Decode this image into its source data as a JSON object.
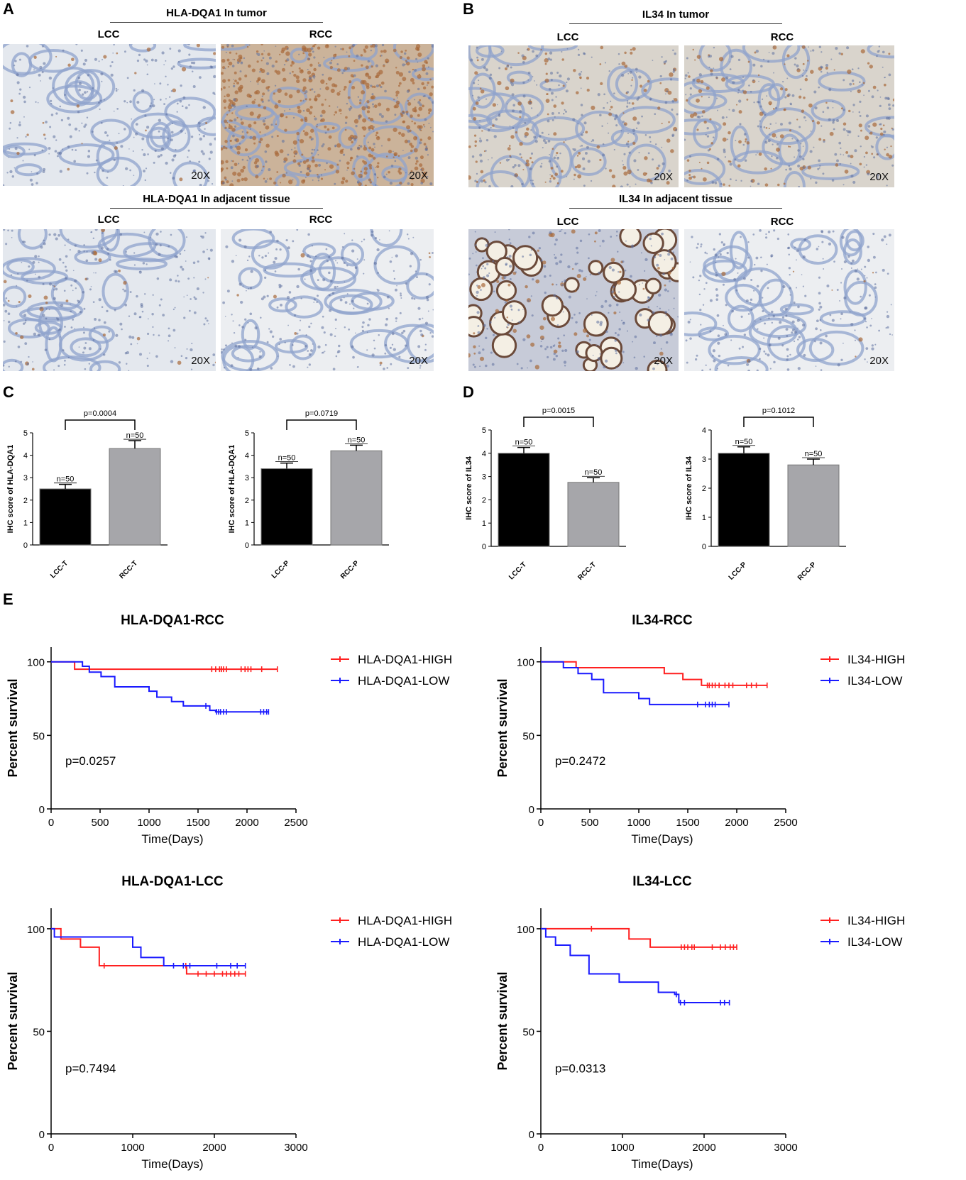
{
  "panels": {
    "A": {
      "label": "A",
      "tumor_title": "HLA-DQA1 In tumor",
      "adjacent_title": "HLA-DQA1 In adjacent tissue",
      "col_left": "LCC",
      "col_right": "RCC",
      "mag": "20X"
    },
    "B": {
      "label": "B",
      "tumor_title": "IL34  In tumor",
      "adjacent_title": "IL34 In adjacent tissue",
      "col_left": "LCC",
      "col_right": "RCC",
      "mag": "20X"
    },
    "C": {
      "label": "C"
    },
    "D": {
      "label": "D"
    },
    "E": {
      "label": "E"
    }
  },
  "colors": {
    "black_bar": "#000000",
    "gray_bar": "#a6a6aa",
    "high": "#ff2020",
    "low": "#1a1aff",
    "he_blue": "#8fa3cc",
    "dab_brown": "#a86a3a"
  },
  "chart_data": [
    {
      "id": "C-left",
      "type": "bar",
      "categories": [
        "LCC-T",
        "RCC-T"
      ],
      "values": [
        2.5,
        4.3
      ],
      "errors": [
        0.2,
        0.35
      ],
      "ns": [
        "n=50",
        "n=50"
      ],
      "ylabel": "IHC score of HLA-DQA1",
      "ylim": [
        0,
        5
      ],
      "yticks": [
        "0",
        "1",
        "2",
        "3",
        "4",
        "5"
      ],
      "pvalue": "p=0.0004"
    },
    {
      "id": "C-right",
      "type": "bar",
      "categories": [
        "LCC-P",
        "RCC-P"
      ],
      "values": [
        3.4,
        4.2
      ],
      "errors": [
        0.25,
        0.25
      ],
      "ns": [
        "n=50",
        "n=50"
      ],
      "ylabel": "IHC score of HLA-DQA1",
      "ylim": [
        0,
        5
      ],
      "yticks": [
        "0",
        "1",
        "2",
        "3",
        "4",
        "5"
      ],
      "pvalue": "p=0.0719"
    },
    {
      "id": "D-left",
      "type": "bar",
      "categories": [
        "LCC-T",
        "RCC-T"
      ],
      "values": [
        4.0,
        2.75
      ],
      "errors": [
        0.25,
        0.2
      ],
      "ns": [
        "n=50",
        "n=50"
      ],
      "ylabel": "IHC score of IL34",
      "ylim": [
        0,
        5
      ],
      "yticks": [
        "0",
        "1",
        "2",
        "3",
        "4",
        "5"
      ],
      "pvalue": "p=0.0015"
    },
    {
      "id": "D-right",
      "type": "bar",
      "categories": [
        "LCC-P",
        "RCC-P"
      ],
      "values": [
        3.2,
        2.8
      ],
      "errors": [
        0.22,
        0.2
      ],
      "ns": [
        "n=50",
        "n=50"
      ],
      "ylabel": "IHC score of IL34",
      "ylim": [
        0,
        4
      ],
      "yticks": [
        "0",
        "1",
        "2",
        "3",
        "4"
      ],
      "pvalue": "p=0.1012"
    },
    {
      "id": "E-hla-rcc",
      "type": "line",
      "title": "HLA-DQA1-RCC",
      "xlabel": "Time(Days)",
      "ylabel": "Percent survival",
      "xlim": [
        0,
        2500
      ],
      "ylim": [
        0,
        100
      ],
      "xticks": [
        "0",
        "500",
        "1000",
        "1500",
        "2000",
        "2500"
      ],
      "yticks": [
        "0",
        "50",
        "100"
      ],
      "pvalue": "p=0.0257",
      "series": [
        {
          "name": "HLA-DQA1-HIGH",
          "color": "#ff2020",
          "steps": [
            [
              0,
              100
            ],
            [
              240,
              95
            ],
            [
              2310,
              95
            ]
          ],
          "censors": [
            1640,
            1680,
            1720,
            1740,
            1760,
            1790,
            1940,
            1980,
            2010,
            2040,
            2150,
            2310
          ]
        },
        {
          "name": "HLA-DQA1-LOW",
          "color": "#1a1aff",
          "steps": [
            [
              0,
              100
            ],
            [
              320,
              97
            ],
            [
              390,
              93
            ],
            [
              510,
              90
            ],
            [
              650,
              83
            ],
            [
              1000,
              80
            ],
            [
              1080,
              76
            ],
            [
              1230,
              73
            ],
            [
              1350,
              70
            ],
            [
              1620,
              67
            ],
            [
              1680,
              66
            ],
            [
              2220,
              66
            ]
          ],
          "censors": [
            1580,
            1690,
            1710,
            1730,
            1760,
            1790,
            2140,
            2170,
            2200,
            2220
          ]
        }
      ]
    },
    {
      "id": "E-il34-rcc",
      "type": "line",
      "title": "IL34-RCC",
      "xlabel": "Time(Days)",
      "ylabel": "Percent survival",
      "xlim": [
        0,
        2500
      ],
      "ylim": [
        0,
        100
      ],
      "xticks": [
        "0",
        "500",
        "1000",
        "1500",
        "2000",
        "2500"
      ],
      "yticks": [
        "0",
        "50",
        "100"
      ],
      "pvalue": "p=0.2472",
      "series": [
        {
          "name": "IL34-HIGH",
          "color": "#ff2020",
          "steps": [
            [
              0,
              100
            ],
            [
              360,
              96
            ],
            [
              1260,
              92
            ],
            [
              1450,
              88
            ],
            [
              1640,
              84
            ],
            [
              2310,
              84
            ]
          ],
          "censors": [
            1700,
            1720,
            1750,
            1780,
            1820,
            1880,
            1920,
            1960,
            2100,
            2150,
            2200,
            2310
          ]
        },
        {
          "name": "IL34-LOW",
          "color": "#1a1aff",
          "steps": [
            [
              0,
              100
            ],
            [
              230,
              96
            ],
            [
              380,
              92
            ],
            [
              520,
              88
            ],
            [
              640,
              79
            ],
            [
              1000,
              75
            ],
            [
              1110,
              71
            ],
            [
              1920,
              71
            ]
          ],
          "censors": [
            1600,
            1680,
            1720,
            1750,
            1780,
            1920
          ]
        }
      ]
    },
    {
      "id": "E-hla-lcc",
      "type": "line",
      "title": "HLA-DQA1-LCC",
      "xlabel": "Time(Days)",
      "ylabel": "Percent survival",
      "xlim": [
        0,
        3000
      ],
      "ylim": [
        0,
        100
      ],
      "xticks": [
        "0",
        "1000",
        "2000",
        "3000"
      ],
      "yticks": [
        "0",
        "50",
        "100"
      ],
      "pvalue": "p=0.7494",
      "series": [
        {
          "name": "HLA-DQA1-HIGH",
          "color": "#ff2020",
          "steps": [
            [
              0,
              100
            ],
            [
              120,
              95
            ],
            [
              360,
              91
            ],
            [
              590,
              82
            ],
            [
              1380,
              82
            ],
            [
              1660,
              78
            ],
            [
              2380,
              78
            ]
          ],
          "censors": [
            650,
            1650,
            1800,
            1900,
            2000,
            2100,
            2150,
            2200,
            2250,
            2300,
            2380
          ]
        },
        {
          "name": "HLA-DQA1-LOW",
          "color": "#1a1aff",
          "steps": [
            [
              0,
              100
            ],
            [
              40,
              96
            ],
            [
              1000,
              91
            ],
            [
              1100,
              86
            ],
            [
              1380,
              82
            ],
            [
              2380,
              82
            ]
          ],
          "censors": [
            1500,
            1620,
            1700,
            2030,
            2200,
            2280,
            2380
          ]
        }
      ]
    },
    {
      "id": "E-il34-lcc",
      "type": "line",
      "title": "IL34-LCC",
      "xlabel": "Time(Days)",
      "ylabel": "Percent survival",
      "xlim": [
        0,
        3000
      ],
      "ylim": [
        0,
        100
      ],
      "xticks": [
        "0",
        "1000",
        "2000",
        "3000"
      ],
      "yticks": [
        "0",
        "50",
        "100"
      ],
      "pvalue": "p=0.0313",
      "series": [
        {
          "name": "IL34-HIGH",
          "color": "#ff2020",
          "steps": [
            [
              0,
              100
            ],
            [
              1080,
              95
            ],
            [
              1340,
              91
            ],
            [
              2400,
              91
            ]
          ],
          "censors": [
            620,
            1720,
            1760,
            1800,
            1850,
            1880,
            2100,
            2200,
            2260,
            2320,
            2360,
            2400
          ]
        },
        {
          "name": "IL34-LOW",
          "color": "#1a1aff",
          "steps": [
            [
              0,
              100
            ],
            [
              60,
              96
            ],
            [
              180,
              92
            ],
            [
              360,
              87
            ],
            [
              590,
              78
            ],
            [
              960,
              74
            ],
            [
              1440,
              69
            ],
            [
              1640,
              68
            ],
            [
              1690,
              64
            ],
            [
              2310,
              64
            ]
          ],
          "censors": [
            1660,
            1710,
            1760,
            2200,
            2250,
            2310
          ]
        }
      ]
    }
  ]
}
